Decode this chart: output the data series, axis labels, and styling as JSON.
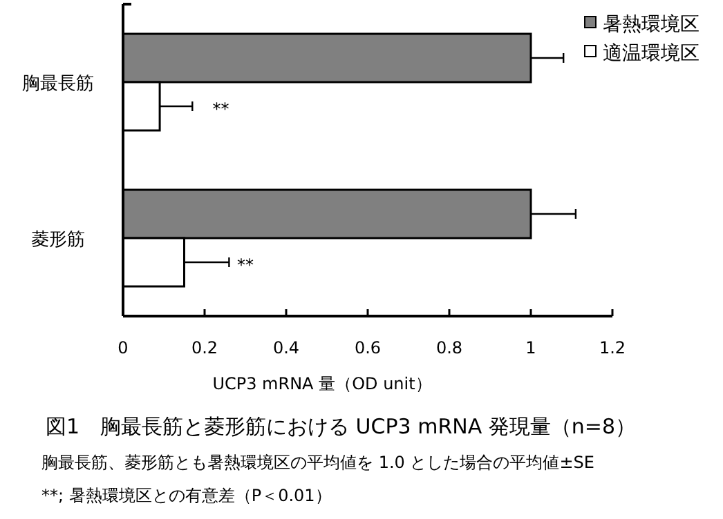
{
  "chart_data": {
    "type": "bar",
    "orientation": "horizontal",
    "title": "図1　胸最長筋と菱形筋における UCP3 mRNA 発現量（n=8）",
    "xlabel": "UCP3 mRNA 量（OD unit）",
    "categories": [
      "胸最長筋",
      "菱形筋"
    ],
    "series": [
      {
        "name": "暑熱環境区",
        "color": "#808080",
        "values": [
          1.0,
          1.0
        ],
        "errors": [
          0.08,
          0.11
        ]
      },
      {
        "name": "適温環境区",
        "color": "#ffffff",
        "values": [
          0.09,
          0.15
        ],
        "errors": [
          0.08,
          0.11
        ]
      }
    ],
    "xlim": [
      0,
      1.2
    ],
    "xticks": [
      0,
      0.2,
      0.4,
      0.6,
      0.8,
      1,
      1.2
    ],
    "grid": false,
    "legend": "top right",
    "annotations": [
      {
        "text": "**",
        "x": 0.24,
        "y": "胸最長筋"
      },
      {
        "text": "**",
        "x": 0.3,
        "y": "菱形筋"
      },
      "胸最長筋、菱形筋とも暑熱環境区の平均値を 1.0 とした場合の平均値±SE",
      "**;  暑熱環境区との有意差（P＜0.01）"
    ]
  }
}
